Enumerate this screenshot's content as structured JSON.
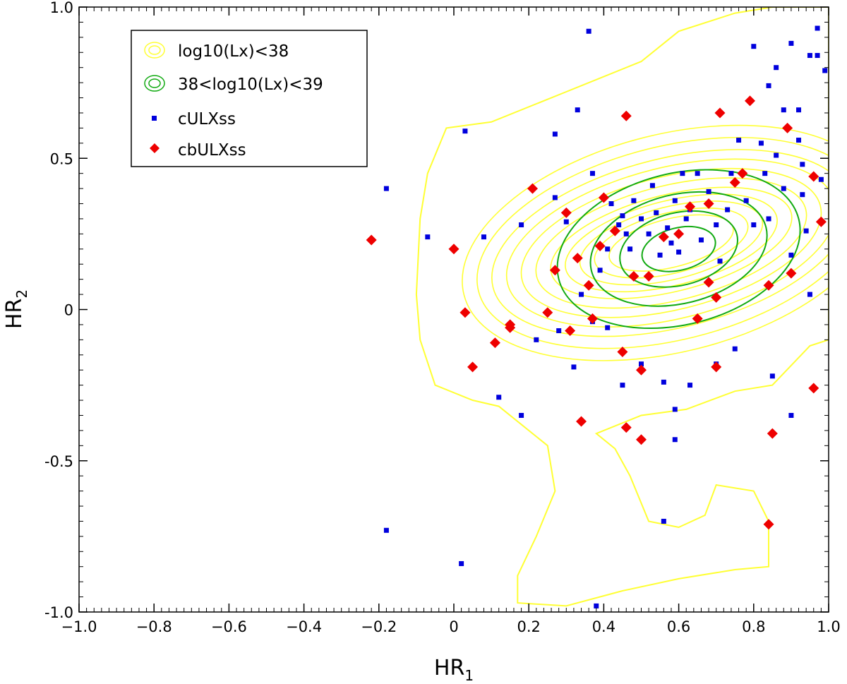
{
  "chart_data": {
    "type": "scatter",
    "xlabel": "HR",
    "xlabel_sub": "1",
    "ylabel": "HR",
    "ylabel_sub": "2",
    "xlim": [
      -1.0,
      1.0
    ],
    "ylim": [
      -1.0,
      1.0
    ],
    "x_ticks": [
      -1.0,
      -0.8,
      -0.6,
      -0.4,
      -0.2,
      0,
      0.2,
      0.4,
      0.6,
      0.8,
      1.0
    ],
    "x_tick_labels": [
      "−1.0",
      "−0.8",
      "−0.6",
      "−0.4",
      "−0.2",
      "0",
      "0.2",
      "0.4",
      "0.6",
      "0.8",
      "1.0"
    ],
    "y_ticks": [
      1.0,
      0.5,
      0,
      -0.5,
      -1.0
    ],
    "y_tick_labels": [
      "1.0",
      "0.5",
      "0",
      "-0.5",
      "-1.0"
    ],
    "grid": false,
    "legend_position": "top-left",
    "contours": [
      {
        "name": "log10(Lx)<38",
        "color": "#ffff33",
        "center": [
          0.58,
          0.22
        ],
        "levels": [
          {
            "rx": 0.17,
            "ry": 0.08
          },
          {
            "rx": 0.21,
            "ry": 0.1
          },
          {
            "rx": 0.25,
            "ry": 0.12
          },
          {
            "rx": 0.29,
            "ry": 0.14
          },
          {
            "rx": 0.33,
            "ry": 0.16
          },
          {
            "rx": 0.37,
            "ry": 0.19
          },
          {
            "rx": 0.41,
            "ry": 0.22
          },
          {
            "rx": 0.45,
            "ry": 0.25
          },
          {
            "rx": 0.49,
            "ry": 0.28
          },
          {
            "rx": 0.53,
            "ry": 0.32
          },
          {
            "rx": 0.57,
            "ry": 0.36
          }
        ],
        "outer_path": [
          [
            0.85,
            1.0
          ],
          [
            0.75,
            0.98
          ],
          [
            0.6,
            0.92
          ],
          [
            0.5,
            0.82
          ],
          [
            0.3,
            0.72
          ],
          [
            0.1,
            0.62
          ],
          [
            -0.02,
            0.6
          ],
          [
            -0.07,
            0.45
          ],
          [
            -0.09,
            0.3
          ],
          [
            -0.1,
            0.05
          ],
          [
            -0.09,
            -0.1
          ],
          [
            -0.05,
            -0.25
          ],
          [
            0.05,
            -0.3
          ],
          [
            0.12,
            -0.32
          ],
          [
            0.18,
            -0.38
          ],
          [
            0.25,
            -0.45
          ],
          [
            0.27,
            -0.6
          ],
          [
            0.22,
            -0.75
          ],
          [
            0.17,
            -0.88
          ],
          [
            0.17,
            -0.97
          ],
          [
            0.3,
            -0.98
          ],
          [
            0.45,
            -0.93
          ],
          [
            0.6,
            -0.89
          ],
          [
            0.75,
            -0.86
          ],
          [
            0.84,
            -0.85
          ],
          [
            0.84,
            -0.7
          ],
          [
            0.8,
            -0.6
          ],
          [
            0.7,
            -0.58
          ],
          [
            0.67,
            -0.68
          ],
          [
            0.6,
            -0.72
          ],
          [
            0.52,
            -0.7
          ],
          [
            0.47,
            -0.55
          ],
          [
            0.43,
            -0.46
          ],
          [
            0.38,
            -0.41
          ],
          [
            0.5,
            -0.35
          ],
          [
            0.62,
            -0.33
          ],
          [
            0.75,
            -0.27
          ],
          [
            0.85,
            -0.25
          ],
          [
            0.95,
            -0.12
          ],
          [
            1.0,
            -0.1
          ],
          [
            1.0,
            1.0
          ]
        ]
      },
      {
        "name": "38<log10(Lx)<39",
        "color": "#11aa11",
        "center": [
          0.6,
          0.2
        ],
        "levels": [
          {
            "rx": 0.1,
            "ry": 0.07
          },
          {
            "rx": 0.16,
            "ry": 0.12
          },
          {
            "rx": 0.24,
            "ry": 0.18
          },
          {
            "rx": 0.33,
            "ry": 0.25
          }
        ]
      }
    ],
    "series": [
      {
        "name": "cULXss",
        "marker": "square",
        "color": "#0000dd",
        "points": [
          [
            -0.18,
            0.4
          ],
          [
            -0.07,
            0.24
          ],
          [
            0.03,
            0.59
          ],
          [
            0.08,
            0.24
          ],
          [
            0.18,
            0.28
          ],
          [
            0.27,
            0.58
          ],
          [
            0.33,
            0.66
          ],
          [
            0.37,
            0.45
          ],
          [
            0.41,
            0.2
          ],
          [
            0.42,
            0.35
          ],
          [
            0.44,
            0.28
          ],
          [
            0.45,
            0.31
          ],
          [
            0.46,
            0.25
          ],
          [
            0.47,
            0.2
          ],
          [
            0.48,
            0.36
          ],
          [
            0.5,
            0.3
          ],
          [
            0.52,
            0.25
          ],
          [
            0.53,
            0.41
          ],
          [
            0.54,
            0.32
          ],
          [
            0.55,
            0.18
          ],
          [
            0.57,
            0.27
          ],
          [
            0.58,
            0.22
          ],
          [
            0.59,
            0.36
          ],
          [
            0.6,
            0.19
          ],
          [
            0.61,
            0.45
          ],
          [
            0.62,
            0.3
          ],
          [
            0.63,
            0.33
          ],
          [
            0.65,
            0.45
          ],
          [
            0.66,
            0.23
          ],
          [
            0.68,
            0.39
          ],
          [
            0.7,
            0.28
          ],
          [
            0.71,
            0.16
          ],
          [
            0.73,
            0.33
          ],
          [
            0.74,
            0.45
          ],
          [
            0.76,
            0.56
          ],
          [
            0.78,
            0.36
          ],
          [
            0.8,
            0.28
          ],
          [
            0.82,
            0.55
          ],
          [
            0.83,
            0.45
          ],
          [
            0.84,
            0.3
          ],
          [
            0.86,
            0.51
          ],
          [
            0.88,
            0.4
          ],
          [
            0.9,
            0.18
          ],
          [
            0.92,
            0.66
          ],
          [
            0.93,
            0.38
          ],
          [
            0.94,
            0.26
          ],
          [
            0.95,
            0.05
          ],
          [
            0.97,
            0.84
          ],
          [
            0.98,
            0.43
          ],
          [
            0.5,
            -0.18
          ],
          [
            0.56,
            -0.24
          ],
          [
            0.59,
            -0.33
          ],
          [
            0.63,
            -0.25
          ],
          [
            0.7,
            -0.18
          ],
          [
            0.75,
            -0.13
          ],
          [
            0.85,
            -0.22
          ],
          [
            0.9,
            -0.35
          ],
          [
            -0.18,
            -0.73
          ],
          [
            0.02,
            -0.84
          ],
          [
            0.38,
            -0.98
          ],
          [
            0.56,
            -0.7
          ],
          [
            0.59,
            -0.43
          ],
          [
            0.45,
            -0.25
          ],
          [
            0.32,
            -0.19
          ],
          [
            0.28,
            -0.07
          ],
          [
            0.22,
            -0.1
          ],
          [
            0.18,
            -0.35
          ],
          [
            0.12,
            -0.29
          ],
          [
            0.37,
            -0.04
          ],
          [
            0.34,
            0.05
          ],
          [
            0.39,
            0.13
          ],
          [
            0.41,
            -0.06
          ],
          [
            0.36,
            0.92
          ],
          [
            0.27,
            0.37
          ],
          [
            0.3,
            0.29
          ],
          [
            0.8,
            0.87
          ],
          [
            0.84,
            0.74
          ],
          [
            0.88,
            0.66
          ],
          [
            0.9,
            0.88
          ],
          [
            0.93,
            0.48
          ],
          [
            0.97,
            0.93
          ],
          [
            0.99,
            0.79
          ],
          [
            0.95,
            0.84
          ],
          [
            0.86,
            0.8
          ],
          [
            0.92,
            0.56
          ]
        ]
      },
      {
        "name": "cbULXss",
        "marker": "diamond",
        "color": "#ee0000",
        "points": [
          [
            -0.22,
            0.23
          ],
          [
            0.0,
            0.2
          ],
          [
            0.03,
            -0.01
          ],
          [
            0.05,
            -0.19
          ],
          [
            0.11,
            -0.11
          ],
          [
            0.15,
            -0.06
          ],
          [
            0.15,
            -0.05
          ],
          [
            0.21,
            0.4
          ],
          [
            0.25,
            -0.01
          ],
          [
            0.27,
            0.13
          ],
          [
            0.3,
            0.32
          ],
          [
            0.31,
            -0.07
          ],
          [
            0.33,
            0.17
          ],
          [
            0.34,
            -0.37
          ],
          [
            0.36,
            0.08
          ],
          [
            0.37,
            -0.03
          ],
          [
            0.39,
            0.21
          ],
          [
            0.4,
            0.37
          ],
          [
            0.43,
            0.26
          ],
          [
            0.45,
            -0.14
          ],
          [
            0.46,
            0.64
          ],
          [
            0.46,
            -0.39
          ],
          [
            0.48,
            0.11
          ],
          [
            0.5,
            -0.2
          ],
          [
            0.5,
            -0.43
          ],
          [
            0.52,
            0.11
          ],
          [
            0.56,
            0.24
          ],
          [
            0.6,
            0.25
          ],
          [
            0.63,
            0.34
          ],
          [
            0.65,
            -0.03
          ],
          [
            0.68,
            0.09
          ],
          [
            0.68,
            0.35
          ],
          [
            0.7,
            0.04
          ],
          [
            0.7,
            -0.19
          ],
          [
            0.71,
            0.65
          ],
          [
            0.75,
            0.42
          ],
          [
            0.77,
            0.45
          ],
          [
            0.79,
            0.69
          ],
          [
            0.84,
            0.08
          ],
          [
            0.85,
            -0.41
          ],
          [
            0.84,
            -0.71
          ],
          [
            0.89,
            0.6
          ],
          [
            0.9,
            0.12
          ],
          [
            0.96,
            0.44
          ],
          [
            0.96,
            -0.26
          ],
          [
            0.98,
            0.29
          ]
        ]
      }
    ]
  }
}
